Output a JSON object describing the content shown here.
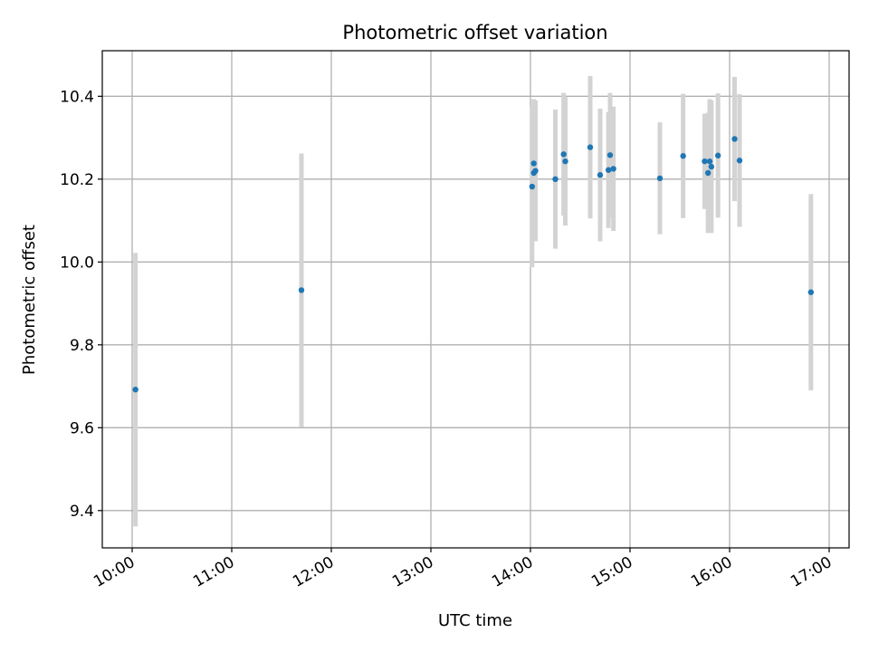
{
  "chart_data": {
    "type": "scatter",
    "title": "Photometric offset variation",
    "xlabel": "UTC time",
    "ylabel": "Photometric offset",
    "xlim": [
      "09:42",
      "17:12"
    ],
    "ylim": [
      9.31,
      10.51
    ],
    "grid": true,
    "x_ticks": [
      "10:00",
      "11:00",
      "12:00",
      "13:00",
      "14:00",
      "15:00",
      "16:00",
      "17:00"
    ],
    "y_ticks": [
      "9.4",
      "9.6",
      "9.8",
      "10.0",
      "10.2",
      "10.4"
    ],
    "series": [
      {
        "marker_color": "#1f77b4",
        "errorbar_color": "#d3d3d3",
        "points": [
          {
            "x": "10:02",
            "y": 9.692,
            "yerr": 0.33
          },
          {
            "x": "11:42",
            "y": 9.932,
            "yerr": 0.33
          },
          {
            "x": "14:01",
            "y": 10.182,
            "yerr": 0.195
          },
          {
            "x": "14:02",
            "y": 10.238,
            "yerr": 0.155
          },
          {
            "x": "14:03",
            "y": 10.22,
            "yerr": 0.17
          },
          {
            "x": "14:02",
            "y": 10.215,
            "yerr": 0.16
          },
          {
            "x": "14:15",
            "y": 10.2,
            "yerr": 0.168
          },
          {
            "x": "14:20",
            "y": 10.26,
            "yerr": 0.148
          },
          {
            "x": "14:21",
            "y": 10.243,
            "yerr": 0.155
          },
          {
            "x": "14:36",
            "y": 10.277,
            "yerr": 0.172
          },
          {
            "x": "14:42",
            "y": 10.21,
            "yerr": 0.16
          },
          {
            "x": "14:47",
            "y": 10.222,
            "yerr": 0.14
          },
          {
            "x": "14:48",
            "y": 10.258,
            "yerr": 0.15
          },
          {
            "x": "14:50",
            "y": 10.225,
            "yerr": 0.15
          },
          {
            "x": "15:18",
            "y": 10.202,
            "yerr": 0.135
          },
          {
            "x": "15:32",
            "y": 10.256,
            "yerr": 0.15
          },
          {
            "x": "15:45",
            "y": 10.243,
            "yerr": 0.115
          },
          {
            "x": "15:47",
            "y": 10.215,
            "yerr": 0.145
          },
          {
            "x": "15:48",
            "y": 10.243,
            "yerr": 0.15
          },
          {
            "x": "15:49",
            "y": 10.23,
            "yerr": 0.16
          },
          {
            "x": "15:53",
            "y": 10.257,
            "yerr": 0.15
          },
          {
            "x": "16:03",
            "y": 10.297,
            "yerr": 0.15
          },
          {
            "x": "16:06",
            "y": 10.245,
            "yerr": 0.16
          },
          {
            "x": "16:49",
            "y": 9.927,
            "yerr": 0.237
          }
        ]
      }
    ]
  }
}
